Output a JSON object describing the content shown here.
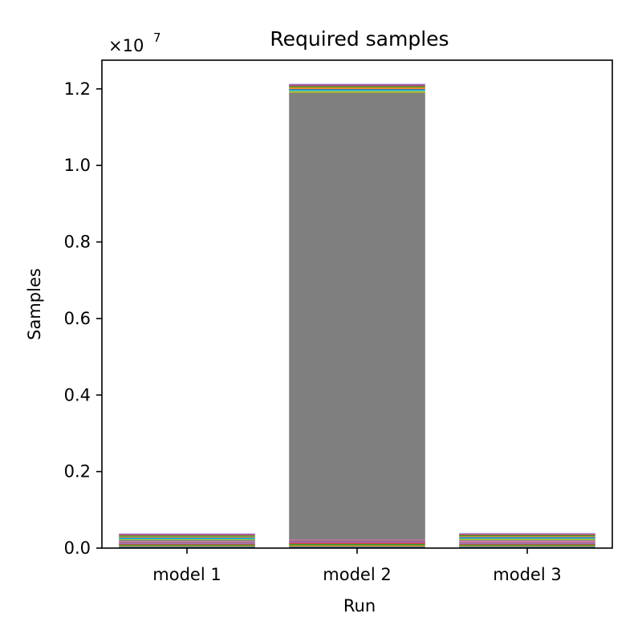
{
  "chart_data": {
    "type": "bar",
    "stacked": true,
    "title": "Required samples",
    "xlabel": "Run",
    "ylabel": "Samples",
    "y_offset_base": "×10",
    "y_offset_exponent": "7",
    "y_scale": 10000000,
    "ylim": [
      0,
      1.275
    ],
    "yticks": [
      0.0,
      0.2,
      0.4,
      0.6,
      0.8,
      1.0,
      1.2
    ],
    "ytick_labels": [
      "0.0",
      "0.2",
      "0.4",
      "0.6",
      "0.8",
      "1.0",
      "1.2"
    ],
    "grid": false,
    "categories": [
      "model 1",
      "model 2",
      "model 3"
    ],
    "palette": [
      "#1f77b4",
      "#ff7f0e",
      "#2ca02c",
      "#d62728",
      "#9467bd",
      "#8c564b",
      "#e377c2",
      "#7f7f7f",
      "#bcbd22",
      "#17becf"
    ],
    "stacks": [
      [
        0.004,
        0.002,
        0.003,
        0.002,
        0.003,
        0.002,
        0.002,
        0.003,
        0.002,
        0.003,
        0.002,
        0.002,
        0.003,
        0.002,
        0.003
      ],
      [
        0.004,
        0.003,
        0.004,
        0.003,
        0.004,
        0.002,
        0.002,
        1.168,
        0.004,
        0.003,
        0.003,
        0.004,
        0.003,
        0.002,
        0.004
      ],
      [
        0.004,
        0.002,
        0.003,
        0.002,
        0.003,
        0.002,
        0.003,
        0.002,
        0.003,
        0.002,
        0.003,
        0.002,
        0.003,
        0.002,
        0.003
      ]
    ]
  }
}
